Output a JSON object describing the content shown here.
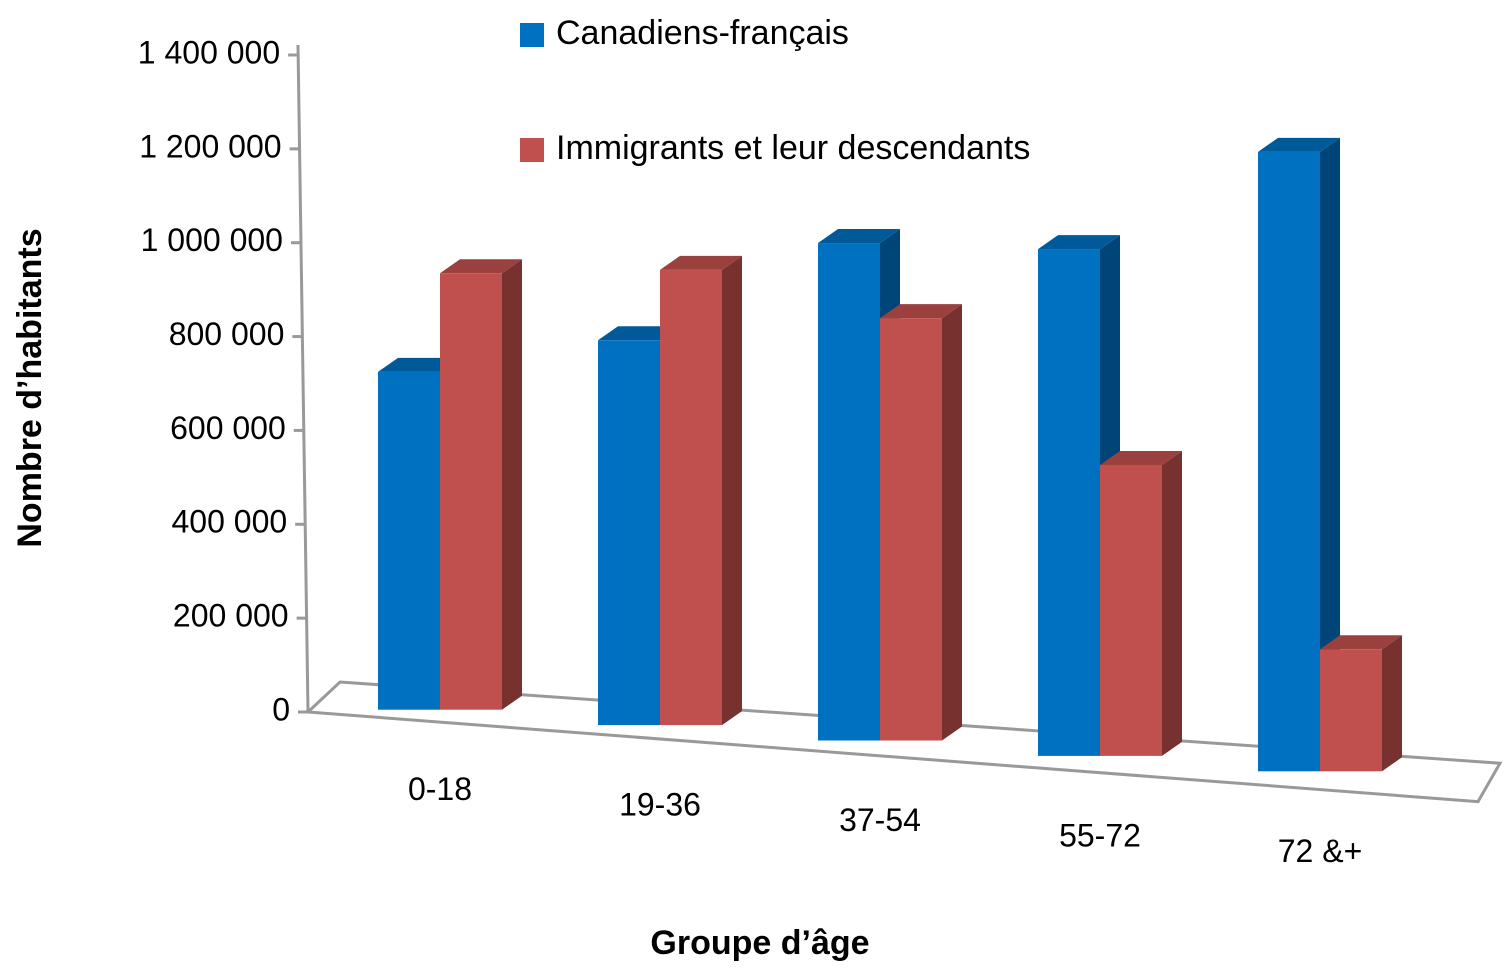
{
  "chart_data": {
    "type": "bar3d",
    "xlabel": "Groupe d’âge",
    "ylabel": "Nombre d’habitants",
    "categories": [
      "0-18",
      "19-36",
      "37-54",
      "55-72",
      "72 &+"
    ],
    "series": [
      {
        "name": "Canadiens-français",
        "color": "#0070c0",
        "values": [
          720000,
          820000,
          1060000,
          1080000,
          1320000
        ]
      },
      {
        "name": "Immigrants et leur descendants",
        "color": "#c0504d",
        "values": [
          930000,
          970000,
          900000,
          620000,
          260000
        ]
      }
    ],
    "ylim": [
      0,
      1400000
    ],
    "yticks": [
      0,
      {
        "value": 200000,
        "label": "200 000"
      },
      {
        "value": 400000,
        "label": "400 000"
      },
      {
        "value": 600000,
        "label": "600 000"
      },
      {
        "value": 800000,
        "label": "800 000"
      },
      {
        "value": 1000000,
        "label": "1 000 000"
      },
      {
        "value": 1200000,
        "label": "1 200 000"
      },
      {
        "value": 1400000,
        "label": "1 400 000"
      }
    ],
    "grid": false
  }
}
